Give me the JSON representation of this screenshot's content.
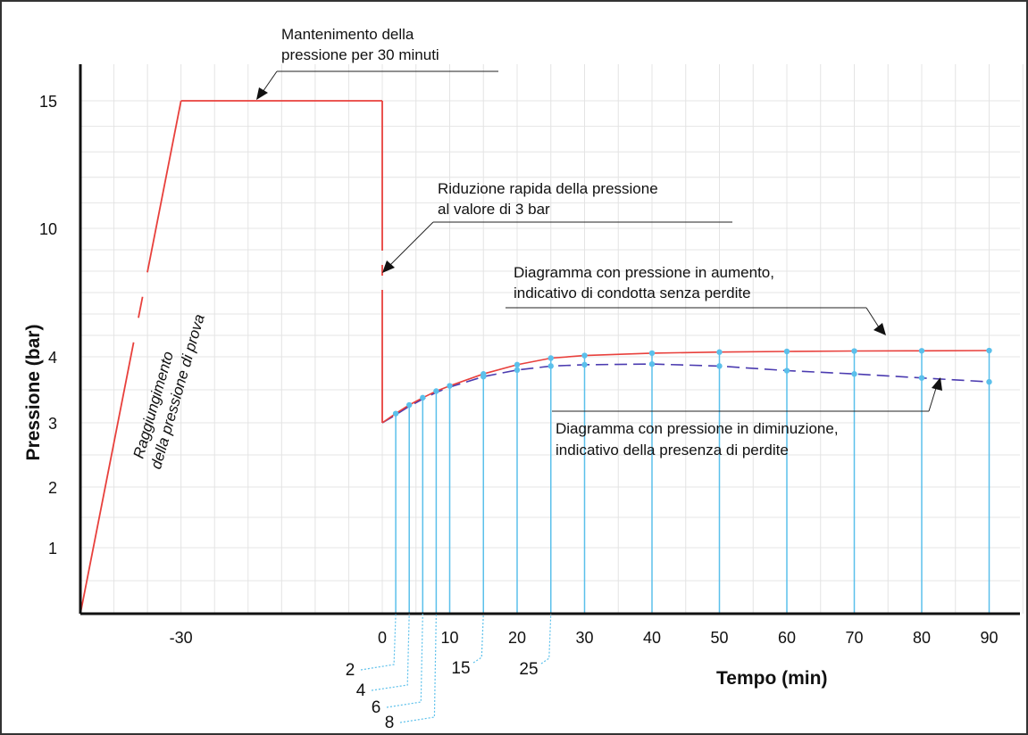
{
  "chart_data": {
    "type": "line",
    "xlabel": "Tempo (min)",
    "ylabel": "Pressione (bar)",
    "x_ticks_main": [
      -30,
      0,
      10,
      20,
      30,
      40,
      50,
      60,
      70,
      80,
      90
    ],
    "x_ticks_extra": [
      2,
      4,
      6,
      8,
      15,
      25
    ],
    "y_ticks": [
      1,
      2,
      3,
      4,
      10,
      15
    ],
    "grid": true,
    "series": [
      {
        "color": "#e8403c",
        "dash": "solid",
        "points": [
          [
            0,
            3.0
          ],
          [
            2,
            3.14
          ],
          [
            4,
            3.27
          ],
          [
            6,
            3.38
          ],
          [
            8,
            3.48
          ],
          [
            10,
            3.56
          ],
          [
            15,
            3.74
          ],
          [
            20,
            3.88
          ],
          [
            25,
            3.98
          ],
          [
            30,
            4.06
          ],
          [
            40,
            4.17
          ],
          [
            50,
            4.22
          ],
          [
            60,
            4.25
          ],
          [
            70,
            4.27
          ],
          [
            80,
            4.28
          ],
          [
            90,
            4.29
          ]
        ]
      },
      {
        "color": "#4b3bb0",
        "dash": "dashed",
        "points": [
          [
            0,
            3.0
          ],
          [
            2,
            3.12
          ],
          [
            4,
            3.25
          ],
          [
            6,
            3.36
          ],
          [
            8,
            3.46
          ],
          [
            10,
            3.54
          ],
          [
            15,
            3.7
          ],
          [
            20,
            3.8
          ],
          [
            25,
            3.86
          ],
          [
            30,
            3.88
          ],
          [
            40,
            3.89
          ],
          [
            50,
            3.86
          ],
          [
            60,
            3.79
          ],
          [
            70,
            3.74
          ],
          [
            80,
            3.68
          ],
          [
            90,
            3.62
          ]
        ]
      },
      {
        "color": "#e8403c",
        "dash": "mixed",
        "points": [
          [
            -45,
            0
          ],
          [
            -30,
            15
          ],
          [
            0,
            15
          ],
          [
            0,
            3.0
          ]
        ]
      }
    ],
    "measurement_points_color": "#5bc0eb",
    "annotations": {
      "hold": {
        "line1": "Mantenimento della",
        "line2": "pressione per 30 minuti"
      },
      "drop": {
        "line1": "Riduzione rapida della pressione",
        "line2": "al valore  di 3 bar"
      },
      "rise": {
        "line1": "Diagramma con pressione in aumento,",
        "line2": "indicativo di condotta senza perdite"
      },
      "fall": {
        "line1": "Diagramma con pressione in diminuzione,",
        "line2": "indicativo della presenza di perdite"
      },
      "ramp": {
        "line1": "Raggiungimento",
        "line2": "della pressione di prova"
      }
    }
  }
}
